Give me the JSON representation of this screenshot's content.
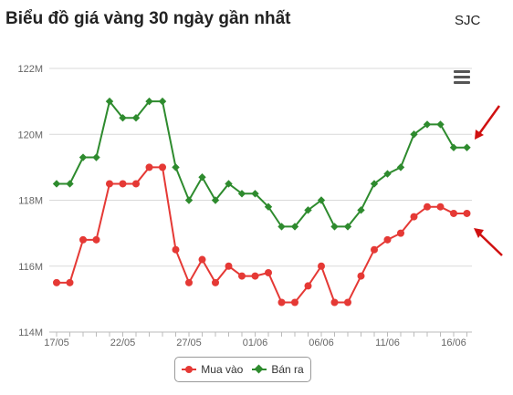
{
  "header": {
    "title": "Biểu đồ giá vàng 30 ngày gần nhất",
    "brand": "SJC"
  },
  "chart_data": {
    "type": "line",
    "ylim": [
      114,
      122
    ],
    "y_ticks": [
      {
        "value": 122,
        "label": "122M"
      },
      {
        "value": 120,
        "label": "120M"
      },
      {
        "value": 118,
        "label": "118M"
      },
      {
        "value": 116,
        "label": "116M"
      },
      {
        "value": 114,
        "label": "114M"
      }
    ],
    "x_ticks": [
      {
        "index": 0,
        "label": "17/05"
      },
      {
        "index": 5,
        "label": "22/05"
      },
      {
        "index": 10,
        "label": "27/05"
      },
      {
        "index": 15,
        "label": "01/06"
      },
      {
        "index": 20,
        "label": "06/06"
      },
      {
        "index": 25,
        "label": "11/06"
      },
      {
        "index": 30,
        "label": "16/06"
      }
    ],
    "x_count": 32,
    "grid": true,
    "legend_position": "bottom",
    "series": [
      {
        "name": "Mua vào",
        "color": "#e53935",
        "marker": "circle",
        "values": [
          115.5,
          115.5,
          116.8,
          116.8,
          118.5,
          118.5,
          118.5,
          119.0,
          119.0,
          116.5,
          115.5,
          116.2,
          115.5,
          116.0,
          115.7,
          115.7,
          115.8,
          114.9,
          114.9,
          115.4,
          116.0,
          114.9,
          114.9,
          115.7,
          116.5,
          116.8,
          117.0,
          117.5,
          117.8,
          117.8,
          117.6,
          117.6
        ]
      },
      {
        "name": "Bán ra",
        "color": "#2e8b2e",
        "marker": "diamond",
        "values": [
          118.5,
          118.5,
          119.3,
          119.3,
          121.0,
          120.5,
          120.5,
          121.0,
          121.0,
          119.0,
          118.0,
          118.7,
          118.0,
          118.5,
          118.2,
          118.2,
          117.8,
          117.2,
          117.2,
          117.7,
          118.0,
          117.2,
          117.2,
          117.7,
          118.5,
          118.8,
          119.0,
          120.0,
          120.3,
          120.3,
          119.6,
          119.6
        ]
      }
    ]
  }
}
